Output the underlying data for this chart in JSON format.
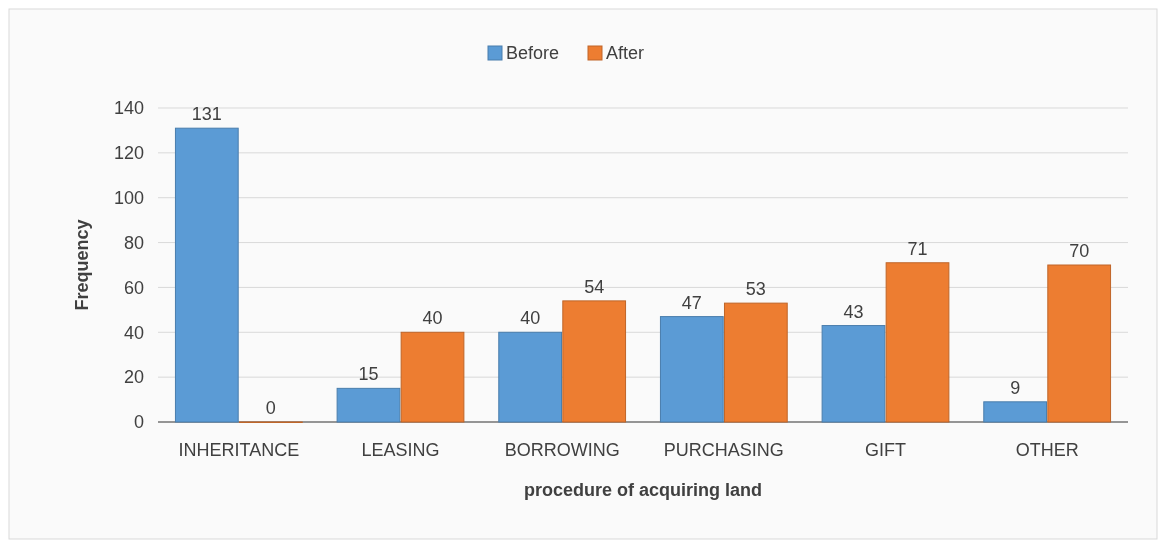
{
  "chart_data": {
    "type": "bar",
    "xlabel": "procedure of acquiring land",
    "ylabel": "Frequency",
    "categories": [
      "INHERITANCE",
      "LEASING",
      "BORROWING",
      "PURCHASING",
      "GIFT",
      "OTHER"
    ],
    "series": [
      {
        "name": "Before",
        "color": "#5b9bd5",
        "values": [
          131,
          15,
          40,
          47,
          43,
          9
        ]
      },
      {
        "name": "After",
        "color": "#ed7d31",
        "values": [
          0,
          40,
          54,
          53,
          71,
          70
        ]
      }
    ],
    "ylim": [
      0,
      140
    ],
    "yticks": [
      0,
      20,
      40,
      60,
      80,
      100,
      120,
      140
    ],
    "grid": "y",
    "legend": "top",
    "data_labels": true
  }
}
